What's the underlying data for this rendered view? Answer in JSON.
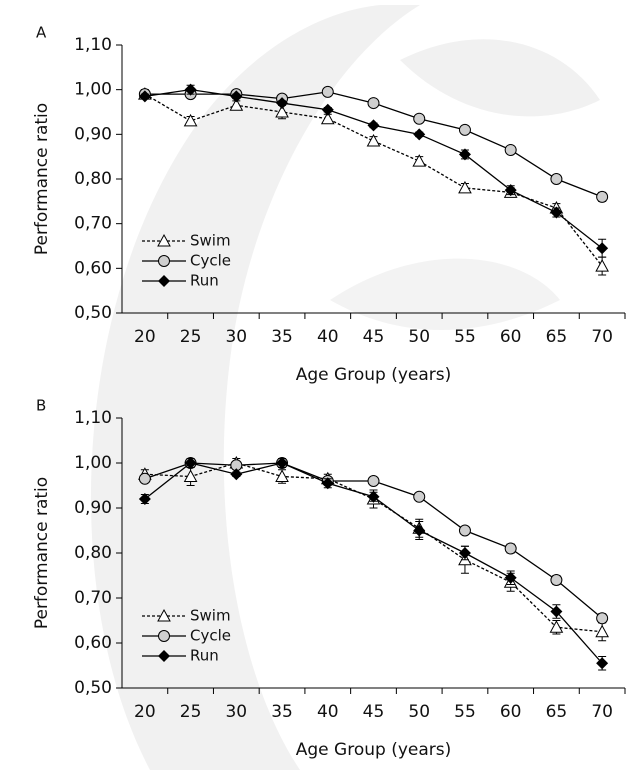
{
  "chart_data": [
    {
      "type": "line",
      "panel": "A",
      "y_label": "Performance ratio",
      "x_label": "Age Group (years)",
      "categories": [
        "20",
        "25",
        "30",
        "35",
        "40",
        "45",
        "50",
        "55",
        "60",
        "65",
        "70"
      ],
      "ylim": [
        0.5,
        1.1
      ],
      "yticks": [
        {
          "value": 0.5,
          "label": "0,50"
        },
        {
          "value": 0.6,
          "label": "0,60"
        },
        {
          "value": 0.7,
          "label": "0,70"
        },
        {
          "value": 0.8,
          "label": "0,80"
        },
        {
          "value": 0.9,
          "label": "0,90"
        },
        {
          "value": 1.0,
          "label": "1,00"
        },
        {
          "value": 1.1,
          "label": "1,10"
        }
      ],
      "legend": "lower-left",
      "series": [
        {
          "name": "Swim",
          "color": "#000000",
          "marker": "triangle",
          "dashed": true,
          "values": [
            0.99,
            0.93,
            0.965,
            0.95,
            0.935,
            0.885,
            0.84,
            0.78,
            0.77,
            0.735,
            0.605
          ],
          "errors": [
            0.01,
            0.01,
            0.01,
            0.015,
            0.01,
            0.01,
            0.01,
            0.01,
            0.01,
            0.01,
            0.02
          ]
        },
        {
          "name": "Cycle",
          "color": "#000000",
          "marker": "circle",
          "dashed": false,
          "values": [
            0.99,
            0.99,
            0.99,
            0.98,
            0.995,
            0.97,
            0.935,
            0.91,
            0.865,
            0.8,
            0.76
          ],
          "errors": [
            0.005,
            0.005,
            0.005,
            0.005,
            0.005,
            0.005,
            0.005,
            0.005,
            0.005,
            0.005,
            0.01
          ]
        },
        {
          "name": "Run",
          "color": "#000000",
          "marker": "diamond",
          "dashed": false,
          "values": [
            0.985,
            1.0,
            0.985,
            0.97,
            0.955,
            0.92,
            0.9,
            0.855,
            0.775,
            0.725,
            0.645
          ],
          "errors": [
            0.005,
            0.01,
            0.005,
            0.005,
            0.005,
            0.005,
            0.005,
            0.01,
            0.01,
            0.01,
            0.02
          ]
        }
      ]
    },
    {
      "type": "line",
      "panel": "B",
      "y_label": "Performance ratio",
      "x_label": "Age Group (years)",
      "categories": [
        "20",
        "25",
        "30",
        "35",
        "40",
        "45",
        "50",
        "55",
        "60",
        "65",
        "70"
      ],
      "ylim": [
        0.5,
        1.1
      ],
      "yticks": [
        {
          "value": 0.5,
          "label": "0,50"
        },
        {
          "value": 0.6,
          "label": "0,60"
        },
        {
          "value": 0.7,
          "label": "0,70"
        },
        {
          "value": 0.8,
          "label": "0,80"
        },
        {
          "value": 0.9,
          "label": "0,90"
        },
        {
          "value": 1.0,
          "label": "1,00"
        },
        {
          "value": 1.1,
          "label": "1,10"
        }
      ],
      "legend": "lower-left",
      "series": [
        {
          "name": "Swim",
          "color": "#000000",
          "marker": "triangle",
          "dashed": true,
          "values": [
            0.975,
            0.97,
            1.0,
            0.97,
            0.965,
            0.92,
            0.855,
            0.785,
            0.735,
            0.635,
            0.625
          ],
          "errors": [
            0.01,
            0.02,
            0.01,
            0.015,
            0.01,
            0.02,
            0.02,
            0.03,
            0.02,
            0.015,
            0.02
          ]
        },
        {
          "name": "Cycle",
          "color": "#000000",
          "marker": "circle",
          "dashed": false,
          "values": [
            0.965,
            1.0,
            0.995,
            1.0,
            0.96,
            0.96,
            0.925,
            0.85,
            0.81,
            0.74,
            0.655
          ],
          "errors": [
            0.005,
            0.005,
            0.005,
            0.005,
            0.005,
            0.005,
            0.005,
            0.005,
            0.01,
            0.01,
            0.01
          ]
        },
        {
          "name": "Run",
          "color": "#000000",
          "marker": "diamond",
          "dashed": false,
          "values": [
            0.92,
            1.0,
            0.975,
            1.0,
            0.955,
            0.925,
            0.85,
            0.8,
            0.745,
            0.67,
            0.555
          ],
          "errors": [
            0.01,
            0.01,
            0.005,
            0.01,
            0.01,
            0.01,
            0.02,
            0.015,
            0.015,
            0.015,
            0.015
          ]
        }
      ]
    }
  ]
}
